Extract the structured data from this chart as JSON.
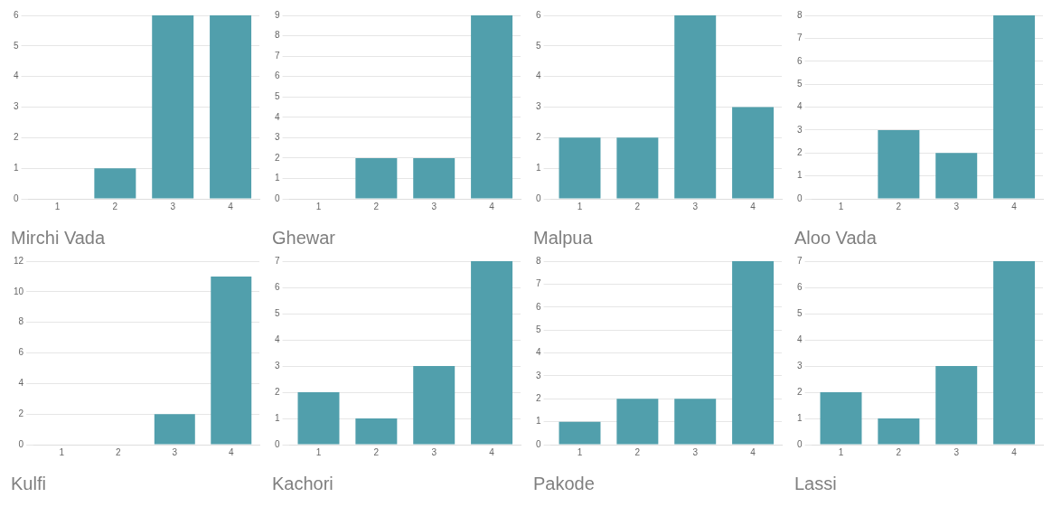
{
  "chart_data": [
    {
      "type": "bar",
      "title": "Mirchi Vada",
      "categories": [
        "1",
        "2",
        "3",
        "4"
      ],
      "values": [
        0,
        1,
        6,
        6
      ],
      "color": "#519fac",
      "ylim": [
        0,
        6
      ],
      "yticks": [
        0,
        1,
        2,
        3,
        4,
        5,
        6
      ],
      "grid": "y",
      "legend": false
    },
    {
      "type": "bar",
      "title": "Ghewar",
      "categories": [
        "1",
        "2",
        "3",
        "4"
      ],
      "values": [
        0,
        2,
        2,
        9
      ],
      "color": "#519fac",
      "ylim": [
        0,
        9
      ],
      "yticks": [
        0,
        1,
        2,
        3,
        4,
        5,
        6,
        7,
        8,
        9
      ],
      "grid": "y",
      "legend": false
    },
    {
      "type": "bar",
      "title": "Malpua",
      "categories": [
        "1",
        "2",
        "3",
        "4"
      ],
      "values": [
        2,
        2,
        6,
        3
      ],
      "color": "#519fac",
      "ylim": [
        0,
        6
      ],
      "yticks": [
        0,
        1,
        2,
        3,
        4,
        5,
        6
      ],
      "grid": "y",
      "legend": false
    },
    {
      "type": "bar",
      "title": "Aloo Vada",
      "categories": [
        "1",
        "2",
        "3",
        "4"
      ],
      "values": [
        0,
        3,
        2,
        8
      ],
      "color": "#519fac",
      "ylim": [
        0,
        8
      ],
      "yticks": [
        0,
        1,
        2,
        3,
        4,
        5,
        6,
        7,
        8
      ],
      "grid": "y",
      "legend": false
    },
    {
      "type": "bar",
      "title": "Kulfi",
      "categories": [
        "1",
        "2",
        "3",
        "4"
      ],
      "values": [
        0,
        0,
        2,
        11
      ],
      "color": "#519fac",
      "ylim": [
        0,
        12
      ],
      "yticks": [
        0,
        2,
        4,
        6,
        8,
        10,
        12
      ],
      "grid": "y",
      "legend": false
    },
    {
      "type": "bar",
      "title": "Kachori",
      "categories": [
        "1",
        "2",
        "3",
        "4"
      ],
      "values": [
        2,
        1,
        3,
        7
      ],
      "color": "#519fac",
      "ylim": [
        0,
        7
      ],
      "yticks": [
        0,
        1,
        2,
        3,
        4,
        5,
        6,
        7
      ],
      "grid": "y",
      "legend": false
    },
    {
      "type": "bar",
      "title": "Pakode",
      "categories": [
        "1",
        "2",
        "3",
        "4"
      ],
      "values": [
        1,
        2,
        2,
        8
      ],
      "color": "#519fac",
      "ylim": [
        0,
        8
      ],
      "yticks": [
        0,
        1,
        2,
        3,
        4,
        5,
        6,
        7,
        8
      ],
      "grid": "y",
      "legend": false
    },
    {
      "type": "bar",
      "title": "Lassi",
      "categories": [
        "1",
        "2",
        "3",
        "4"
      ],
      "values": [
        2,
        1,
        3,
        7
      ],
      "color": "#519fac",
      "ylim": [
        0,
        7
      ],
      "yticks": [
        0,
        1,
        2,
        3,
        4,
        5,
        6,
        7
      ],
      "grid": "y",
      "legend": false
    }
  ]
}
